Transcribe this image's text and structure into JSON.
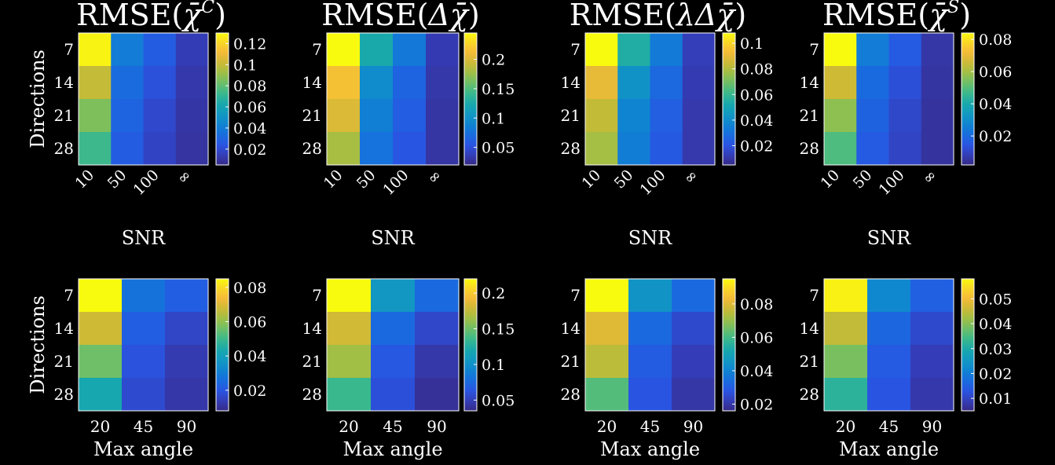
{
  "colors": {
    "background": "#000000",
    "foreground": "#ffffff",
    "edge": "#ffffff",
    "colormap": "parula"
  },
  "chart_data": [
    {
      "type": "heatmap",
      "title": "RMSE(χ̄ᶜ)",
      "title_parts": {
        "prefix": "RMSE(",
        "symbol": "χ̄",
        "sup": "C",
        "suffix": ")"
      },
      "xlabel": "SNR",
      "ylabel": "Directions",
      "x_tick_labels": [
        "10",
        "50",
        "100",
        "∞"
      ],
      "x_tick_rotation": "rotated",
      "y_tick_labels": [
        "7",
        "14",
        "21",
        "28"
      ],
      "values": [
        [
          0.128,
          0.04,
          0.027,
          0.014
        ],
        [
          0.1,
          0.033,
          0.022,
          0.012
        ],
        [
          0.086,
          0.03,
          0.019,
          0.011
        ],
        [
          0.073,
          0.027,
          0.017,
          0.01
        ]
      ],
      "colorbar": {
        "min": 0.005,
        "max": 0.13,
        "ticks": [
          0.02,
          0.04,
          0.06,
          0.08,
          0.1,
          0.12
        ],
        "tick_labels": [
          "0.02",
          "0.04",
          "0.06",
          "0.08",
          "0.1",
          "0.12"
        ]
      }
    },
    {
      "type": "heatmap",
      "title": "RMSE(Δχ̄)",
      "title_parts": {
        "prefix": "RMSE(",
        "symbol": "Δχ̄",
        "sup": "",
        "suffix": ")"
      },
      "xlabel": "SNR",
      "ylabel": "",
      "x_tick_labels": [
        "10",
        "50",
        "100",
        "∞"
      ],
      "x_tick_rotation": "rotated",
      "y_tick_labels": [
        "7",
        "14",
        "21",
        "28"
      ],
      "values": [
        [
          0.245,
          0.125,
          0.08,
          0.035
        ],
        [
          0.215,
          0.095,
          0.065,
          0.032
        ],
        [
          0.2,
          0.085,
          0.06,
          0.03
        ],
        [
          0.18,
          0.075,
          0.055,
          0.03
        ]
      ],
      "colorbar": {
        "min": 0.02,
        "max": 0.245,
        "ticks": [
          0.05,
          0.1,
          0.15,
          0.2
        ],
        "tick_labels": [
          "0.05",
          "0.1",
          "0.15",
          "0.2"
        ]
      }
    },
    {
      "type": "heatmap",
      "title": "RMSE(λΔχ̄)",
      "title_parts": {
        "prefix": "RMSE(",
        "symbol": "λΔχ̄",
        "sup": "",
        "suffix": ")"
      },
      "xlabel": "SNR",
      "ylabel": "",
      "x_tick_labels": [
        "10",
        "50",
        "100",
        "∞"
      ],
      "x_tick_rotation": "rotated",
      "y_tick_labels": [
        "7",
        "14",
        "21",
        "28"
      ],
      "values": [
        [
          0.108,
          0.055,
          0.033,
          0.013
        ],
        [
          0.09,
          0.042,
          0.027,
          0.012
        ],
        [
          0.083,
          0.037,
          0.024,
          0.011
        ],
        [
          0.078,
          0.034,
          0.022,
          0.011
        ]
      ],
      "colorbar": {
        "min": 0.005,
        "max": 0.108,
        "ticks": [
          0.02,
          0.04,
          0.06,
          0.08,
          0.1
        ],
        "tick_labels": [
          "0.02",
          "0.04",
          "0.06",
          "0.08",
          "0.1"
        ]
      }
    },
    {
      "type": "heatmap",
      "title": "RMSE(χ̄ˢ)",
      "title_parts": {
        "prefix": "RMSE(",
        "symbol": "χ̄",
        "sup": "S",
        "suffix": ")"
      },
      "xlabel": "SNR",
      "ylabel": "",
      "x_tick_labels": [
        "10",
        "50",
        "100",
        "∞"
      ],
      "x_tick_rotation": "rotated",
      "y_tick_labels": [
        "7",
        "14",
        "21",
        "28"
      ],
      "values": [
        [
          0.084,
          0.025,
          0.016,
          0.006
        ],
        [
          0.066,
          0.02,
          0.013,
          0.0055
        ],
        [
          0.057,
          0.018,
          0.011,
          0.005
        ],
        [
          0.049,
          0.016,
          0.01,
          0.005
        ]
      ],
      "colorbar": {
        "min": 0.002,
        "max": 0.084,
        "ticks": [
          0.02,
          0.04,
          0.06,
          0.08
        ],
        "tick_labels": [
          "0.02",
          "0.04",
          "0.06",
          "0.08"
        ]
      }
    },
    {
      "type": "heatmap",
      "title": "",
      "xlabel": "Max angle",
      "ylabel": "Directions",
      "x_tick_labels": [
        "20",
        "45",
        "90"
      ],
      "x_tick_rotation": "none",
      "y_tick_labels": [
        "7",
        "14",
        "21",
        "28"
      ],
      "values": [
        [
          0.085,
          0.027,
          0.022
        ],
        [
          0.068,
          0.022,
          0.016
        ],
        [
          0.056,
          0.019,
          0.013
        ],
        [
          0.043,
          0.017,
          0.012
        ]
      ],
      "colorbar": {
        "min": 0.008,
        "max": 0.085,
        "ticks": [
          0.02,
          0.04,
          0.06,
          0.08
        ],
        "tick_labels": [
          "0.02",
          "0.04",
          "0.06",
          "0.08"
        ]
      }
    },
    {
      "type": "heatmap",
      "title": "",
      "xlabel": "Max angle",
      "ylabel": "",
      "x_tick_labels": [
        "20",
        "45",
        "90"
      ],
      "x_tick_rotation": "none",
      "y_tick_labels": [
        "7",
        "14",
        "21",
        "28"
      ],
      "values": [
        [
          0.22,
          0.105,
          0.075
        ],
        [
          0.18,
          0.075,
          0.055
        ],
        [
          0.165,
          0.065,
          0.045
        ],
        [
          0.135,
          0.06,
          0.04
        ]
      ],
      "colorbar": {
        "min": 0.035,
        "max": 0.22,
        "ticks": [
          0.05,
          0.1,
          0.15,
          0.2
        ],
        "tick_labels": [
          "0.05",
          "0.1",
          "0.15",
          "0.2"
        ]
      }
    },
    {
      "type": "heatmap",
      "title": "",
      "xlabel": "Max angle",
      "ylabel": "",
      "x_tick_labels": [
        "20",
        "45",
        "90"
      ],
      "x_tick_rotation": "none",
      "y_tick_labels": [
        "7",
        "14",
        "21",
        "28"
      ],
      "values": [
        [
          0.095,
          0.045,
          0.033
        ],
        [
          0.08,
          0.033,
          0.025
        ],
        [
          0.075,
          0.03,
          0.022
        ],
        [
          0.062,
          0.028,
          0.02
        ]
      ],
      "colorbar": {
        "min": 0.016,
        "max": 0.095,
        "ticks": [
          0.02,
          0.04,
          0.06,
          0.08
        ],
        "tick_labels": [
          "0.02",
          "0.04",
          "0.06",
          "0.08"
        ]
      }
    },
    {
      "type": "heatmap",
      "title": "",
      "xlabel": "Max angle",
      "ylabel": "",
      "x_tick_labels": [
        "20",
        "45",
        "90"
      ],
      "x_tick_rotation": "none",
      "y_tick_labels": [
        "7",
        "14",
        "21",
        "28"
      ],
      "values": [
        [
          0.057,
          0.022,
          0.015
        ],
        [
          0.045,
          0.016,
          0.011
        ],
        [
          0.039,
          0.014,
          0.009
        ],
        [
          0.032,
          0.013,
          0.008
        ]
      ],
      "colorbar": {
        "min": 0.005,
        "max": 0.058,
        "ticks": [
          0.01,
          0.02,
          0.03,
          0.04,
          0.05
        ],
        "tick_labels": [
          "0.01",
          "0.02",
          "0.03",
          "0.04",
          "0.05"
        ]
      }
    }
  ]
}
